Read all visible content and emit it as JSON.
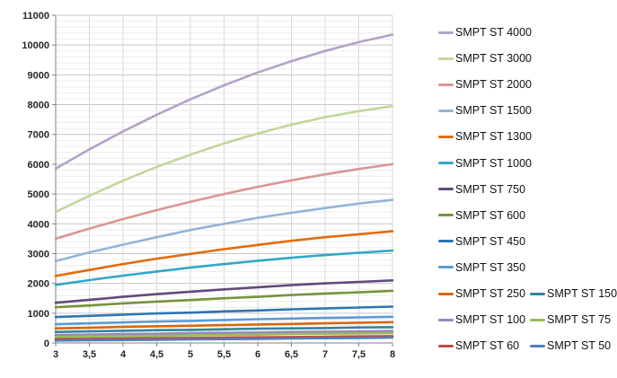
{
  "chart_data": {
    "type": "line",
    "title": "",
    "xlabel": "",
    "ylabel": "",
    "x": [
      3,
      3.5,
      4,
      4.5,
      5,
      5.5,
      6,
      6.5,
      7,
      7.5,
      8
    ],
    "x_tick_labels": [
      "3",
      "3,5",
      "4",
      "4,5",
      "5",
      "5,5",
      "6",
      "6,5",
      "7",
      "7,5",
      "8"
    ],
    "y_ticks": [
      0,
      1000,
      2000,
      3000,
      4000,
      5000,
      6000,
      7000,
      8000,
      9000,
      10000,
      11000
    ],
    "y_tick_labels": [
      "0",
      "1000",
      "2000",
      "3000",
      "4000",
      "5000",
      "6000",
      "7000",
      "8000",
      "9000",
      "10000",
      "11000"
    ],
    "xlim": [
      3,
      8
    ],
    "ylim": [
      0,
      11000
    ],
    "minor_y_step": 200,
    "grid": true,
    "legend_position": "right",
    "series": [
      {
        "name": "SMPT ST 4000",
        "color": "#B3A2C7",
        "values": [
          5850,
          6500,
          7100,
          7660,
          8180,
          8650,
          9080,
          9460,
          9800,
          10100,
          10350
        ]
      },
      {
        "name": "SMPT ST 3000",
        "color": "#C3D69B",
        "values": [
          4400,
          4940,
          5450,
          5910,
          6320,
          6700,
          7030,
          7330,
          7580,
          7780,
          7950
        ]
      },
      {
        "name": "SMPT ST 2000",
        "color": "#D99694",
        "values": [
          3500,
          3840,
          4160,
          4460,
          4740,
          5000,
          5240,
          5460,
          5660,
          5840,
          6000
        ]
      },
      {
        "name": "SMPT ST 1500",
        "color": "#95B3D7",
        "values": [
          2750,
          3040,
          3300,
          3550,
          3790,
          4000,
          4200,
          4370,
          4530,
          4680,
          4800
        ]
      },
      {
        "name": "SMPT ST 1300",
        "color": "#E36C0A",
        "values": [
          2250,
          2450,
          2650,
          2830,
          2990,
          3150,
          3290,
          3430,
          3550,
          3650,
          3750
        ]
      },
      {
        "name": "SMPT ST 1000",
        "color": "#31A8C8",
        "values": [
          1950,
          2110,
          2260,
          2400,
          2530,
          2650,
          2760,
          2860,
          2950,
          3030,
          3100
        ]
      },
      {
        "name": "SMPT ST 750",
        "color": "#604A7B",
        "values": [
          1350,
          1450,
          1550,
          1640,
          1720,
          1800,
          1870,
          1940,
          2000,
          2050,
          2100
        ]
      },
      {
        "name": "SMPT ST 600",
        "color": "#77933C",
        "values": [
          1200,
          1260,
          1330,
          1390,
          1440,
          1500,
          1550,
          1610,
          1660,
          1700,
          1750
        ]
      },
      {
        "name": "SMPT ST 450",
        "color": "#2E74B5",
        "values": [
          870,
          910,
          950,
          990,
          1020,
          1060,
          1090,
          1130,
          1160,
          1190,
          1220
        ]
      },
      {
        "name": "SMPT ST 350",
        "color": "#5B9BD5",
        "values": [
          630,
          660,
          690,
          720,
          740,
          770,
          800,
          820,
          840,
          860,
          880
        ]
      },
      {
        "name": "SMPT ST 250",
        "color": "#D86613",
        "values": [
          490,
          510,
          540,
          560,
          580,
          600,
          620,
          640,
          660,
          680,
          700
        ]
      },
      {
        "name": "SMPT ST 150",
        "color": "#31859C",
        "values": [
          370,
          390,
          410,
          430,
          440,
          460,
          480,
          490,
          500,
          520,
          530
        ]
      },
      {
        "name": "SMPT ST 100",
        "color": "#9886BB",
        "values": [
          270,
          280,
          300,
          310,
          330,
          340,
          350,
          370,
          380,
          390,
          400
        ]
      },
      {
        "name": "SMPT ST 75",
        "color": "#9BBB59",
        "values": [
          200,
          220,
          230,
          240,
          260,
          270,
          280,
          300,
          310,
          320,
          330
        ]
      },
      {
        "name": "SMPT ST 60",
        "color": "#BE4B48",
        "values": [
          130,
          140,
          150,
          160,
          170,
          180,
          190,
          200,
          210,
          220,
          230
        ]
      },
      {
        "name": "SMPT ST 50",
        "color": "#4F81BD",
        "values": [
          80,
          90,
          100,
          110,
          120,
          130,
          140,
          150,
          160,
          170,
          180
        ]
      }
    ],
    "legend_rows": [
      [
        0
      ],
      [
        1
      ],
      [
        2
      ],
      [
        3
      ],
      [
        4
      ],
      [
        5
      ],
      [
        6
      ],
      [
        7
      ],
      [
        8
      ],
      [
        9
      ],
      [
        10,
        11
      ],
      [
        12,
        13
      ],
      [
        14,
        15
      ]
    ],
    "colors": {
      "major_grid": "#C6C6C6",
      "minor_grid": "#ECECEC",
      "vertical_grid": "#D9D9D9",
      "axis": "#808080",
      "tick_text": "#262626"
    }
  }
}
